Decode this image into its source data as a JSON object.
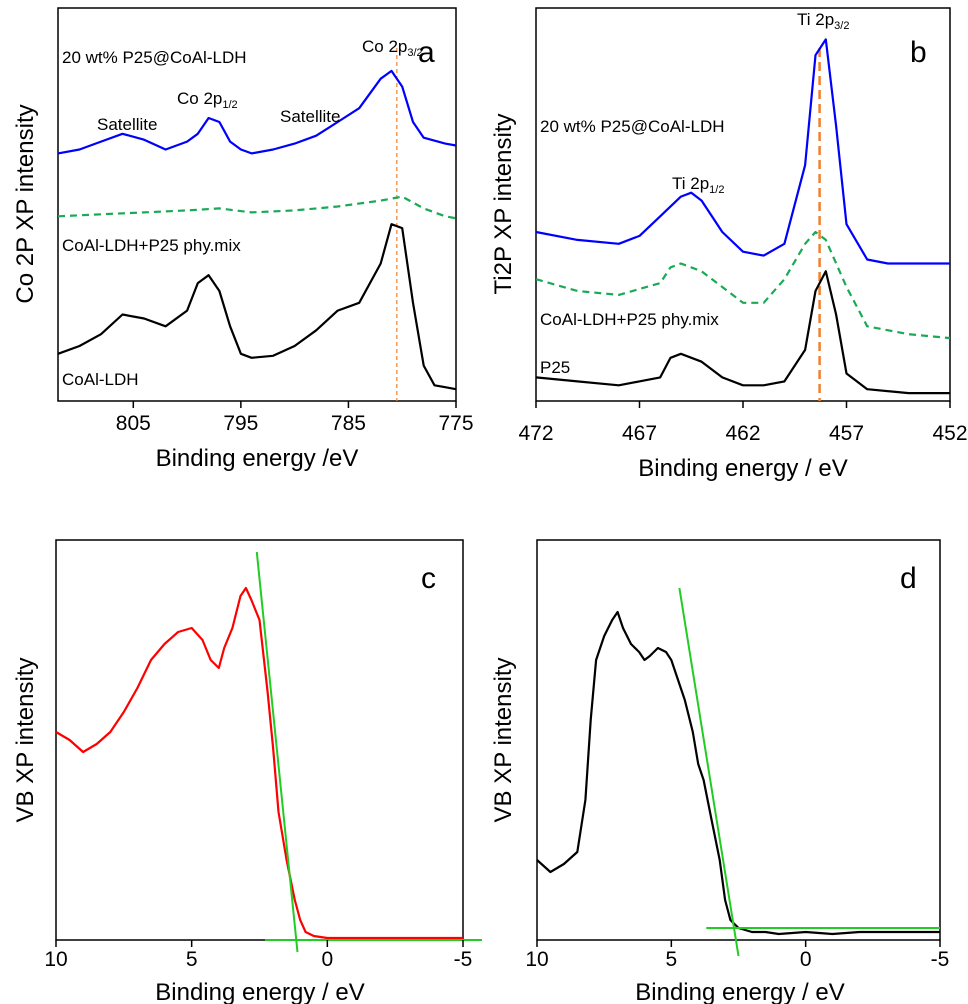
{
  "chart_data": [
    {
      "panel": "a",
      "type": "line",
      "ylabel": "Co 2P XP intensity",
      "xlabel": "Binding energy /eV",
      "xlim": [
        812,
        775
      ],
      "xticks": [
        "805",
        "795",
        "785",
        "775"
      ],
      "series": [
        {
          "name": "20 wt% P25@CoAl-LDH",
          "color": "#0000ff",
          "dash": "",
          "x": [
            812,
            810,
            808,
            806,
            804,
            802,
            800,
            799,
            798,
            797,
            796,
            795,
            794,
            792,
            790,
            788,
            786,
            784,
            782,
            781,
            780,
            779,
            778,
            776,
            775
          ],
          "y": [
            0.63,
            0.64,
            0.66,
            0.68,
            0.665,
            0.64,
            0.66,
            0.68,
            0.72,
            0.71,
            0.66,
            0.64,
            0.63,
            0.64,
            0.655,
            0.675,
            0.71,
            0.745,
            0.82,
            0.84,
            0.8,
            0.71,
            0.67,
            0.655,
            0.65
          ]
        },
        {
          "name": "CoAl-LDH+P25 phy.mix",
          "color": "#1aaa55",
          "dash": "7,5",
          "x": [
            812,
            808,
            804,
            800,
            797,
            794,
            790,
            786,
            782,
            780,
            778,
            776,
            775
          ],
          "y": [
            0.47,
            0.475,
            0.48,
            0.485,
            0.49,
            0.48,
            0.485,
            0.495,
            0.51,
            0.52,
            0.49,
            0.47,
            0.465
          ]
        },
        {
          "name": "CoAl-LDH",
          "color": "#000000",
          "dash": "",
          "x": [
            812,
            810,
            808,
            806,
            804,
            802,
            800,
            799,
            798,
            797,
            796,
            795,
            794,
            792,
            790,
            788,
            786,
            784,
            782,
            781,
            780,
            779,
            778,
            777,
            776,
            775
          ],
          "y": [
            0.12,
            0.14,
            0.17,
            0.22,
            0.21,
            0.19,
            0.23,
            0.3,
            0.32,
            0.28,
            0.19,
            0.12,
            0.11,
            0.115,
            0.14,
            0.18,
            0.23,
            0.25,
            0.35,
            0.45,
            0.44,
            0.25,
            0.09,
            0.04,
            0.035,
            0.03
          ]
        }
      ],
      "annotations": [
        {
          "text": "Satellite",
          "x": 807.5,
          "y": 0.76
        },
        {
          "text": "Co 2p",
          "sub": "1/2",
          "x": 797.5,
          "y": 0.8
        },
        {
          "text": "Satellite",
          "x": 784.5,
          "y": 0.77
        },
        {
          "text": "Co 2p",
          "sub": "3/2",
          "x": 779.5,
          "y": 0.92
        }
      ],
      "vline": {
        "x": 780.5,
        "color": "#f08030"
      }
    },
    {
      "panel": "b",
      "type": "line",
      "ylabel": "Ti2P XP intensity",
      "xlabel": "Binding energy / eV",
      "xlim": [
        472,
        452
      ],
      "xticks": [
        "472",
        "467",
        "462",
        "457",
        "452"
      ],
      "series": [
        {
          "name": "20 wt% P25@CoAl-LDH",
          "color": "#0000ff",
          "dash": "",
          "x": [
            472,
            470,
            468,
            467,
            466,
            465,
            464.5,
            464,
            463,
            462,
            461,
            460,
            459,
            458.5,
            458,
            457.5,
            457,
            456,
            455,
            453,
            452
          ],
          "y": [
            0.43,
            0.41,
            0.4,
            0.42,
            0.47,
            0.52,
            0.53,
            0.51,
            0.43,
            0.38,
            0.37,
            0.4,
            0.6,
            0.88,
            0.92,
            0.7,
            0.45,
            0.36,
            0.35,
            0.35,
            0.35
          ]
        },
        {
          "name": "CoAl-LDH+P25 phy.mix",
          "color": "#1aaa55",
          "dash": "7,5",
          "x": [
            472,
            470,
            468,
            466,
            465.5,
            465,
            464,
            463,
            462,
            461,
            460,
            459,
            458.5,
            458,
            457,
            456,
            454,
            452
          ],
          "y": [
            0.31,
            0.28,
            0.27,
            0.3,
            0.34,
            0.35,
            0.33,
            0.29,
            0.25,
            0.25,
            0.31,
            0.4,
            0.43,
            0.41,
            0.29,
            0.19,
            0.17,
            0.16
          ]
        },
        {
          "name": "P25",
          "color": "#000000",
          "dash": "",
          "x": [
            472,
            470,
            468,
            466,
            465.5,
            465,
            464,
            463,
            462,
            461,
            460,
            459,
            458.5,
            458,
            457.5,
            457,
            456,
            454,
            452
          ],
          "y": [
            0.06,
            0.05,
            0.04,
            0.06,
            0.11,
            0.12,
            0.1,
            0.06,
            0.04,
            0.04,
            0.05,
            0.13,
            0.28,
            0.33,
            0.22,
            0.07,
            0.03,
            0.02,
            0.02
          ]
        }
      ],
      "annotations": [
        {
          "text": "Ti 2p",
          "sub": "1/2",
          "x": 464.5,
          "y": 0.6
        },
        {
          "text": "Ti 2p",
          "sub": "3/2",
          "x": 457.5,
          "y": 0.97
        }
      ],
      "vline": {
        "x": 458.3,
        "color": "#f08030"
      }
    },
    {
      "panel": "c",
      "type": "line",
      "ylabel": "VB XP intensity",
      "xlabel": "Binding energy / eV",
      "xlim": [
        10,
        -5
      ],
      "xticks": [
        "10",
        "5",
        "0",
        "-5"
      ],
      "series": [
        {
          "name": "",
          "color": "#ff0000",
          "dash": "",
          "x": [
            10,
            9.5,
            9,
            8.5,
            8,
            7.5,
            7,
            6.5,
            6,
            5.5,
            5,
            4.6,
            4.3,
            4.0,
            3.8,
            3.5,
            3.2,
            3.0,
            2.8,
            2.5,
            2.2,
            2.0,
            1.8,
            1.5,
            1.2,
            1.0,
            0.8,
            0.5,
            0,
            -1,
            -2,
            -3,
            -4,
            -5
          ],
          "y": [
            0.52,
            0.5,
            0.47,
            0.49,
            0.52,
            0.57,
            0.63,
            0.7,
            0.74,
            0.77,
            0.78,
            0.75,
            0.7,
            0.68,
            0.73,
            0.78,
            0.86,
            0.88,
            0.85,
            0.8,
            0.62,
            0.48,
            0.32,
            0.2,
            0.1,
            0.05,
            0.02,
            0.01,
            0.005,
            0.005,
            0.005,
            0.005,
            0.005,
            0.005
          ]
        }
      ],
      "fit_lines": [
        {
          "color": "#22cc22",
          "x1": 2.6,
          "y1": 0.97,
          "x2": 1.1,
          "y2": -0.03
        },
        {
          "color": "#22cc22",
          "x1": 2.3,
          "y1": 0.0,
          "x2": -5.7,
          "y2": 0.0
        }
      ]
    },
    {
      "panel": "d",
      "type": "line",
      "ylabel": "VB XP intensity",
      "xlabel": "Binding energy / eV",
      "xlim": [
        10,
        -5
      ],
      "xticks": [
        "10",
        "5",
        "0",
        "-5"
      ],
      "series": [
        {
          "name": "",
          "color": "#000000",
          "dash": "",
          "x": [
            10,
            9.5,
            9,
            8.5,
            8.2,
            8,
            7.8,
            7.5,
            7.2,
            7,
            6.8,
            6.5,
            6.2,
            6,
            5.8,
            5.5,
            5.2,
            5,
            4.8,
            4.5,
            4.2,
            4.0,
            3.8,
            3.5,
            3.2,
            3.0,
            2.8,
            2.5,
            2.0,
            1.5,
            1,
            0,
            -1,
            -2,
            -3,
            -4,
            -5
          ],
          "y": [
            0.2,
            0.17,
            0.19,
            0.22,
            0.35,
            0.55,
            0.7,
            0.76,
            0.8,
            0.82,
            0.78,
            0.74,
            0.72,
            0.7,
            0.71,
            0.73,
            0.72,
            0.7,
            0.66,
            0.6,
            0.52,
            0.44,
            0.4,
            0.3,
            0.2,
            0.1,
            0.05,
            0.03,
            0.02,
            0.02,
            0.015,
            0.02,
            0.015,
            0.02,
            0.02,
            0.02,
            0.02
          ]
        }
      ],
      "fit_lines": [
        {
          "color": "#22cc22",
          "x1": 4.7,
          "y1": 0.88,
          "x2": 2.5,
          "y2": -0.04
        },
        {
          "color": "#22cc22",
          "x1": 3.7,
          "y1": 0.03,
          "x2": -5,
          "y2": 0.03
        }
      ]
    }
  ],
  "labels": {
    "a": {
      "letter": "a",
      "s1": "20 wt% P25@CoAl-LDH",
      "s2": "CoAl-LDH+P25 phy.mix",
      "s3": "CoAl-LDH",
      "sat1": "Satellite",
      "sat2": "Satellite",
      "p12": "Co 2p",
      "p12_sub": "1/2",
      "p32": "Co 2p",
      "p32_sub": "3/2"
    },
    "b": {
      "letter": "b",
      "s1": "20 wt% P25@CoAl-LDH",
      "s2": "CoAl-LDH+P25 phy.mix",
      "s3": "P25",
      "p12": "Ti 2p",
      "p12_sub": "1/2",
      "p32": "Ti 2p",
      "p32_sub": "3/2"
    },
    "c": {
      "letter": "c"
    },
    "d": {
      "letter": "d"
    }
  }
}
